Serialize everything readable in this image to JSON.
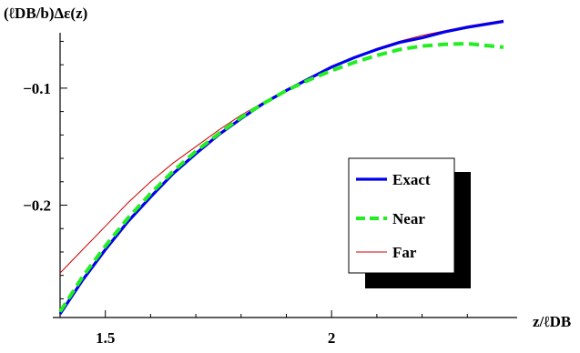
{
  "chart_data": {
    "type": "line",
    "ylabel": "(ℓDB/b)Δε(z)",
    "xlabel": "z/ℓDB",
    "xlim": [
      1.4,
      2.39
    ],
    "ylim": [
      -0.296,
      -0.048
    ],
    "x_ticks": [
      1.5,
      2.0
    ],
    "x_tick_labels": [
      "1.5",
      "2"
    ],
    "y_ticks": [
      -0.1,
      -0.2
    ],
    "y_tick_labels": [
      "−0.1",
      "−0.2"
    ],
    "legend_position": "center-right",
    "grid": false,
    "series": [
      {
        "name": "Exact",
        "color": "#0000ee",
        "style": "solid-thick",
        "points": [
          [
            1.4,
            -0.293
          ],
          [
            1.45,
            -0.264
          ],
          [
            1.5,
            -0.238
          ],
          [
            1.55,
            -0.214
          ],
          [
            1.6,
            -0.193
          ],
          [
            1.65,
            -0.173
          ],
          [
            1.7,
            -0.156
          ],
          [
            1.75,
            -0.14
          ],
          [
            1.8,
            -0.126
          ],
          [
            1.85,
            -0.113
          ],
          [
            1.9,
            -0.102
          ],
          [
            1.95,
            -0.092
          ],
          [
            2.0,
            -0.082
          ],
          [
            2.05,
            -0.074
          ],
          [
            2.1,
            -0.067
          ],
          [
            2.15,
            -0.061
          ],
          [
            2.2,
            -0.057
          ],
          [
            2.25,
            -0.052
          ],
          [
            2.3,
            -0.048
          ],
          [
            2.38,
            -0.043
          ]
        ]
      },
      {
        "name": "Near",
        "color": "#22ee22",
        "style": "dashed-thick",
        "points": [
          [
            1.4,
            -0.291
          ],
          [
            1.45,
            -0.261
          ],
          [
            1.5,
            -0.235
          ],
          [
            1.55,
            -0.211
          ],
          [
            1.6,
            -0.19
          ],
          [
            1.65,
            -0.171
          ],
          [
            1.7,
            -0.154
          ],
          [
            1.75,
            -0.139
          ],
          [
            1.8,
            -0.125
          ],
          [
            1.85,
            -0.113
          ],
          [
            1.9,
            -0.102
          ],
          [
            1.95,
            -0.093
          ],
          [
            2.0,
            -0.085
          ],
          [
            2.05,
            -0.078
          ],
          [
            2.1,
            -0.072
          ],
          [
            2.15,
            -0.067
          ],
          [
            2.2,
            -0.064
          ],
          [
            2.25,
            -0.0625
          ],
          [
            2.3,
            -0.062
          ],
          [
            2.38,
            -0.065
          ]
        ]
      },
      {
        "name": "Far",
        "color": "#cc0000",
        "style": "solid-thin",
        "points": [
          [
            1.4,
            -0.258
          ],
          [
            1.45,
            -0.238
          ],
          [
            1.5,
            -0.218
          ],
          [
            1.55,
            -0.198
          ],
          [
            1.6,
            -0.18
          ],
          [
            1.65,
            -0.164
          ],
          [
            1.7,
            -0.15
          ],
          [
            1.75,
            -0.136
          ],
          [
            1.8,
            -0.123
          ],
          [
            1.85,
            -0.112
          ],
          [
            1.9,
            -0.101
          ],
          [
            1.95,
            -0.091
          ],
          [
            2.0,
            -0.082
          ],
          [
            2.05,
            -0.074
          ],
          [
            2.1,
            -0.066
          ],
          [
            2.15,
            -0.06
          ],
          [
            2.2,
            -0.055
          ],
          [
            2.25,
            -0.051
          ],
          [
            2.3,
            -0.047
          ],
          [
            2.38,
            -0.042
          ]
        ]
      }
    ]
  }
}
